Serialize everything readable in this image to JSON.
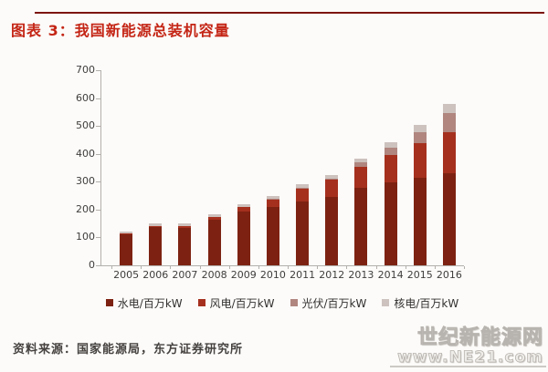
{
  "header": {
    "title": "图表 3：我国新能源总装机容量"
  },
  "chart_data": {
    "type": "bar",
    "stacked": true,
    "title": "我国新能源总装机容量",
    "xlabel": "",
    "ylabel": "",
    "ylim": [
      0,
      700
    ],
    "ytick_step": 100,
    "grid": false,
    "legend_position": "bottom",
    "categories": [
      "2005",
      "2006",
      "2007",
      "2008",
      "2009",
      "2010",
      "2011",
      "2012",
      "2013",
      "2014",
      "2015",
      "2016"
    ],
    "series": [
      {
        "name": "水电/百万kW",
        "color": "#7d2212",
        "values": [
          112,
          138,
          135,
          162,
          192,
          208,
          229,
          246,
          277,
          299,
          314,
          330
        ]
      },
      {
        "name": "风电/百万kW",
        "color": "#a5301e",
        "values": [
          1,
          3,
          6,
          10,
          18,
          30,
          45,
          61,
          76,
          96,
          123,
          148
        ]
      },
      {
        "name": "光伏/百万kW",
        "color": "#b0867f",
        "values": [
          0,
          0,
          0,
          0,
          0,
          1,
          3,
          5,
          15,
          26,
          40,
          68
        ]
      },
      {
        "name": "核电/百万kW",
        "color": "#cdc2be",
        "values": [
          7,
          8,
          9,
          10,
          10,
          11,
          13,
          12,
          14,
          21,
          26,
          34
        ]
      }
    ]
  },
  "footer": {
    "source": "资料来源：国家能源局，东方证券研究所",
    "watermark_line1": "世纪新能源网",
    "watermark_line2": "www.NE21.com"
  },
  "colors": {
    "title_red": "#c42515",
    "rule_red": "#7c150b",
    "axis_gray": "#b3b0ac"
  }
}
